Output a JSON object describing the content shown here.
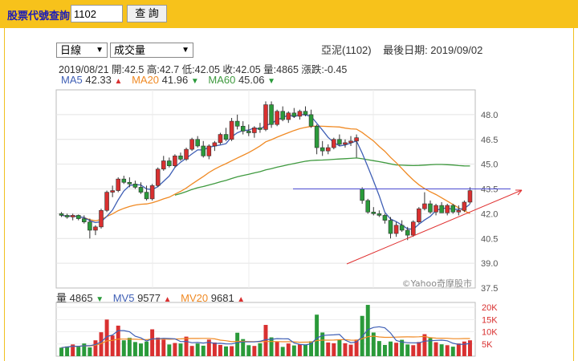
{
  "header": {
    "label": "股票代號查詢",
    "code_value": "1102",
    "query_button": "查 詢"
  },
  "controls": {
    "period_select": "日線",
    "indicator_select": "成交量"
  },
  "stock": {
    "name_code": "亞泥(1102)",
    "latest_date_label": "最後日期: 2019/09/02"
  },
  "info": {
    "date": "2019/08/21",
    "open": "開:42.5",
    "high": "高:42.7",
    "low": "低:42.05",
    "close": "收:42.05",
    "volume": "量:4865",
    "change": "漲跌:-0.45"
  },
  "ma_legend": {
    "ma5_label": "MA5",
    "ma5_value": "42.33",
    "ma5_arrow": "▲",
    "ma20_label": "MA20",
    "ma20_value": "41.96",
    "ma20_arrow": "▼",
    "ma60_label": "MA60",
    "ma60_value": "45.06",
    "ma60_arrow": "▼"
  },
  "vol_legend": {
    "vol_label": "量",
    "vol_value": "4865",
    "vol_arrow": "▼",
    "mv5_label": "MV5",
    "mv5_value": "9577",
    "mv5_arrow": "▲",
    "mv20_label": "MV20",
    "mv20_value": "9681",
    "mv20_arrow": "▲"
  },
  "watermark": "©Yahoo奇摩股市",
  "colors": {
    "up": "#d93030",
    "down": "#2a9a3a",
    "ma5": "#3f5fb5",
    "ma20": "#f08a24",
    "ma60": "#3f9a3f",
    "trend": "#e03030",
    "hline": "#4a4ad0"
  },
  "chart_data": [
    {
      "type": "candlestick",
      "price_axis_ticks": [
        "48.0",
        "46.5",
        "45.0",
        "43.5",
        "42.0",
        "40.5",
        "39.0",
        "37.5"
      ],
      "ylim": [
        37.5,
        49.5
      ],
      "grid": true,
      "candles": [
        [
          42.0,
          42.1,
          41.8,
          41.9
        ],
        [
          41.9,
          42.0,
          41.7,
          41.8
        ],
        [
          41.8,
          42.0,
          41.6,
          41.9
        ],
        [
          41.9,
          41.95,
          41.6,
          41.7
        ],
        [
          41.7,
          41.9,
          41.4,
          41.5
        ],
        [
          41.5,
          41.7,
          40.5,
          41.0
        ],
        [
          41.0,
          41.3,
          40.7,
          41.2
        ],
        [
          41.2,
          42.3,
          41.1,
          42.2
        ],
        [
          42.2,
          43.4,
          42.1,
          43.3
        ],
        [
          43.3,
          43.7,
          43.0,
          43.4
        ],
        [
          43.4,
          44.2,
          43.3,
          44.1
        ],
        [
          44.1,
          44.3,
          43.8,
          43.9
        ],
        [
          43.9,
          44.2,
          43.6,
          43.8
        ],
        [
          43.8,
          44.0,
          43.5,
          43.6
        ],
        [
          43.6,
          43.9,
          43.2,
          43.3
        ],
        [
          43.3,
          43.7,
          42.8,
          42.9
        ],
        [
          42.9,
          43.8,
          42.8,
          43.7
        ],
        [
          43.7,
          44.8,
          43.6,
          44.7
        ],
        [
          44.7,
          45.5,
          44.6,
          45.2
        ],
        [
          45.2,
          45.4,
          44.8,
          44.9
        ],
        [
          44.9,
          45.6,
          44.8,
          45.5
        ],
        [
          45.5,
          45.7,
          45.2,
          45.3
        ],
        [
          45.3,
          46.0,
          45.2,
          45.9
        ],
        [
          45.9,
          46.6,
          45.8,
          46.5
        ],
        [
          46.5,
          46.7,
          46.0,
          46.1
        ],
        [
          46.1,
          46.4,
          45.4,
          45.5
        ],
        [
          45.5,
          46.2,
          45.3,
          46.1
        ],
        [
          46.1,
          46.4,
          45.8,
          46.3
        ],
        [
          46.3,
          46.9,
          46.2,
          46.8
        ],
        [
          46.8,
          47.2,
          46.4,
          46.5
        ],
        [
          46.5,
          47.8,
          46.4,
          47.6
        ],
        [
          47.6,
          48.0,
          47.1,
          47.3
        ],
        [
          47.3,
          47.6,
          46.8,
          47.0
        ],
        [
          47.0,
          47.4,
          46.7,
          46.9
        ],
        [
          46.9,
          47.3,
          46.6,
          47.2
        ],
        [
          47.2,
          47.5,
          46.9,
          47.1
        ],
        [
          47.1,
          48.8,
          47.0,
          48.6
        ],
        [
          48.6,
          48.8,
          47.2,
          47.4
        ],
        [
          47.4,
          48.3,
          47.3,
          48.2
        ],
        [
          48.2,
          48.5,
          47.6,
          47.7
        ],
        [
          47.7,
          48.2,
          47.5,
          48.1
        ],
        [
          48.1,
          48.4,
          47.8,
          47.9
        ],
        [
          47.9,
          48.3,
          47.7,
          48.2
        ],
        [
          48.2,
          48.5,
          47.9,
          48.0
        ],
        [
          48.0,
          48.3,
          47.2,
          47.3
        ],
        [
          47.3,
          47.4,
          45.6,
          46.0
        ],
        [
          46.0,
          46.4,
          45.5,
          45.8
        ],
        [
          45.8,
          46.2,
          45.6,
          46.0
        ],
        [
          46.0,
          46.6,
          45.9,
          46.5
        ],
        [
          46.5,
          46.8,
          46.1,
          46.2
        ],
        [
          46.2,
          46.5,
          46.0,
          46.3
        ],
        [
          46.3,
          46.7,
          46.1,
          46.4
        ],
        [
          46.4,
          46.8,
          45.4,
          46.6
        ],
        [
          43.5,
          43.6,
          42.6,
          42.8
        ],
        [
          42.8,
          42.9,
          42.0,
          42.1
        ],
        [
          42.1,
          42.4,
          41.9,
          42.0
        ],
        [
          42.0,
          42.2,
          41.8,
          41.9
        ],
        [
          41.9,
          42.0,
          41.4,
          41.6
        ],
        [
          41.6,
          41.8,
          40.5,
          40.8
        ],
        [
          40.8,
          41.5,
          40.6,
          41.3
        ],
        [
          41.3,
          41.6,
          40.9,
          41.0
        ],
        [
          41.0,
          41.2,
          40.4,
          40.7
        ],
        [
          40.7,
          41.6,
          40.6,
          41.5
        ],
        [
          41.5,
          42.4,
          41.4,
          42.3
        ],
        [
          42.3,
          43.3,
          42.2,
          42.6
        ],
        [
          42.6,
          42.8,
          42.0,
          42.1
        ],
        [
          42.1,
          42.6,
          41.9,
          42.5
        ],
        [
          42.5,
          42.7,
          42.05,
          42.05
        ],
        [
          42.05,
          42.6,
          41.9,
          42.5
        ],
        [
          42.5,
          42.6,
          42.0,
          42.1
        ],
        [
          42.1,
          42.5,
          41.9,
          42.2
        ],
        [
          42.2,
          42.8,
          42.1,
          42.7
        ],
        [
          42.7,
          43.6,
          42.6,
          43.4
        ]
      ],
      "ma5": {
        "name": "MA5",
        "value": 42.33
      },
      "ma20": {
        "name": "MA20",
        "value": 41.96
      },
      "ma60": {
        "name": "MA60",
        "value": 45.06
      },
      "horizontal_line": 43.5
    },
    {
      "type": "bar",
      "volume_axis_ticks": [
        "20K",
        "15K",
        "10K",
        "5K"
      ],
      "ylim": [
        0,
        22000
      ],
      "volumes": [
        3500,
        4000,
        4800,
        3900,
        5200,
        3600,
        6500,
        9800,
        15000,
        8500,
        12500,
        6500,
        7500,
        5800,
        5200,
        6000,
        11000,
        7600,
        6800,
        4800,
        5400,
        5200,
        8000,
        4200,
        5200,
        4300,
        6800,
        5600,
        4600,
        4000,
        4100,
        9600,
        7000,
        4500,
        4200,
        5300,
        12800,
        7700,
        6000,
        3800,
        5200,
        4400,
        4800,
        4800,
        6100,
        17000,
        9700,
        5600,
        5300,
        6900,
        5300,
        4700,
        6800,
        16500,
        21000,
        9700,
        6200,
        4600,
        6000,
        5500,
        6700,
        4800,
        4500,
        5800,
        9000,
        7400,
        5700,
        4865,
        4500,
        3900,
        5200,
        6000,
        6500
      ]
    }
  ]
}
